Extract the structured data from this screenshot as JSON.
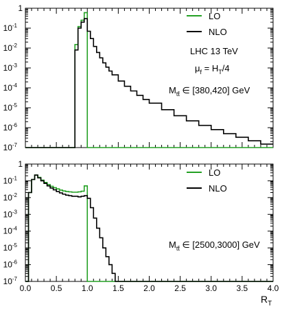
{
  "chart_data": [
    {
      "type": "line",
      "panel": "top",
      "x_range": [
        0,
        4
      ],
      "y_range": [
        1e-07,
        1
      ],
      "y_log": true,
      "xlabel": "",
      "ylabel": "",
      "y_tick_exponents": [
        -7,
        -6,
        -5,
        -4,
        -3,
        -2,
        -1,
        0
      ],
      "legend": [
        {
          "label": "LO",
          "color": "#22a022"
        },
        {
          "label": "NLO",
          "color": "#000000"
        }
      ],
      "annotations": {
        "line1": "LHC 13 TeV",
        "mu_main": "μ",
        "mu_sub": "f",
        "mu_eq": " = H",
        "mu_T": "T",
        "mu_div": "/4",
        "m_main": "M",
        "m_sub": "tt̄",
        "m_range": " ∈ [380,420] GeV"
      },
      "series": [
        {
          "name": "LO",
          "color": "#22a022",
          "bins": [
            [
              0.0,
              1e-07
            ],
            [
              0.8,
              1e-07
            ],
            [
              0.8,
              0.015
            ],
            [
              0.85,
              0.12
            ],
            [
              0.9,
              0.25
            ],
            [
              0.95,
              0.6
            ],
            [
              1.0,
              1e-07
            ],
            [
              4.0,
              1e-07
            ]
          ]
        },
        {
          "name": "NLO",
          "color": "#000000",
          "bins": [
            [
              0.0,
              1e-07
            ],
            [
              0.8,
              1e-07
            ],
            [
              0.8,
              0.008
            ],
            [
              0.85,
              0.1
            ],
            [
              0.9,
              0.2
            ],
            [
              0.95,
              0.3
            ],
            [
              1.0,
              0.07
            ],
            [
              1.05,
              0.03
            ],
            [
              1.1,
              0.012
            ],
            [
              1.15,
              0.006
            ],
            [
              1.2,
              0.0032
            ],
            [
              1.25,
              0.0018
            ],
            [
              1.3,
              0.0011
            ],
            [
              1.35,
              0.0007
            ],
            [
              1.4,
              0.00045
            ],
            [
              1.5,
              0.00022
            ],
            [
              1.6,
              0.00012
            ],
            [
              1.7,
              7e-05
            ],
            [
              1.8,
              4.2e-05
            ],
            [
              1.9,
              2.6e-05
            ],
            [
              2.0,
              1.7e-05
            ],
            [
              2.2,
              8e-06
            ],
            [
              2.4,
              4e-06
            ],
            [
              2.6,
              2.2e-06
            ],
            [
              2.8,
              1.3e-06
            ],
            [
              3.0,
              8e-07
            ],
            [
              3.2,
              5e-07
            ],
            [
              3.4,
              3.3e-07
            ],
            [
              3.6,
              2.2e-07
            ],
            [
              3.8,
              1.5e-07
            ],
            [
              4.0,
              1.5e-07
            ]
          ]
        }
      ]
    },
    {
      "type": "line",
      "panel": "bottom",
      "x_range": [
        0,
        4
      ],
      "y_range": [
        1e-07,
        1
      ],
      "y_log": true,
      "xlabel_main": "R",
      "xlabel_sub": "T",
      "ylabel": "",
      "x_ticks": [
        0,
        0.5,
        1,
        1.5,
        2,
        2.5,
        3,
        3.5,
        4
      ],
      "x_tick_labels": [
        "0.0",
        "0.5",
        "1.0",
        "1.5",
        "2.0",
        "2.5",
        "3.0",
        "3.5",
        "4.0"
      ],
      "y_tick_exponents": [
        -7,
        -6,
        -5,
        -4,
        -3,
        -2,
        -1,
        0
      ],
      "legend": [
        {
          "label": "LO",
          "color": "#22a022"
        },
        {
          "label": "NLO",
          "color": "#000000"
        }
      ],
      "annotations": {
        "m_main": "M",
        "m_sub": "tt̄",
        "m_range": " ∈ [2500,3000] GeV"
      },
      "series": [
        {
          "name": "LO",
          "color": "#22a022",
          "bins": [
            [
              0.0,
              1e-07
            ],
            [
              0.05,
              0.02
            ],
            [
              0.1,
              0.12
            ],
            [
              0.15,
              0.22
            ],
            [
              0.2,
              0.16
            ],
            [
              0.25,
              0.11
            ],
            [
              0.3,
              0.08
            ],
            [
              0.35,
              0.06
            ],
            [
              0.4,
              0.047
            ],
            [
              0.45,
              0.039
            ],
            [
              0.5,
              0.033
            ],
            [
              0.55,
              0.028
            ],
            [
              0.6,
              0.025
            ],
            [
              0.65,
              0.023
            ],
            [
              0.7,
              0.022
            ],
            [
              0.75,
              0.021
            ],
            [
              0.8,
              0.021
            ],
            [
              0.85,
              0.022
            ],
            [
              0.9,
              0.024
            ],
            [
              0.95,
              0.05
            ],
            [
              1.0,
              1e-07
            ],
            [
              4.0,
              1e-07
            ]
          ]
        },
        {
          "name": "NLO",
          "color": "#000000",
          "bins": [
            [
              0.0,
              1e-07
            ],
            [
              0.05,
              0.02
            ],
            [
              0.1,
              0.12
            ],
            [
              0.15,
              0.22
            ],
            [
              0.2,
              0.15
            ],
            [
              0.25,
              0.1
            ],
            [
              0.3,
              0.07
            ],
            [
              0.35,
              0.05
            ],
            [
              0.4,
              0.037
            ],
            [
              0.45,
              0.029
            ],
            [
              0.5,
              0.023
            ],
            [
              0.55,
              0.019
            ],
            [
              0.6,
              0.016
            ],
            [
              0.65,
              0.014
            ],
            [
              0.7,
              0.013
            ],
            [
              0.75,
              0.012
            ],
            [
              0.8,
              0.012
            ],
            [
              0.85,
              0.011
            ],
            [
              0.9,
              0.012
            ],
            [
              0.95,
              0.013
            ],
            [
              1.0,
              0.009
            ],
            [
              1.05,
              0.0025
            ],
            [
              1.1,
              0.0006
            ],
            [
              1.15,
              0.00015
            ],
            [
              1.2,
              4e-05
            ],
            [
              1.25,
              1e-05
            ],
            [
              1.3,
              3e-06
            ],
            [
              1.35,
              1e-06
            ],
            [
              1.4,
              3e-07
            ],
            [
              1.45,
              1e-07
            ],
            [
              4.0,
              1e-07
            ]
          ]
        }
      ]
    }
  ]
}
